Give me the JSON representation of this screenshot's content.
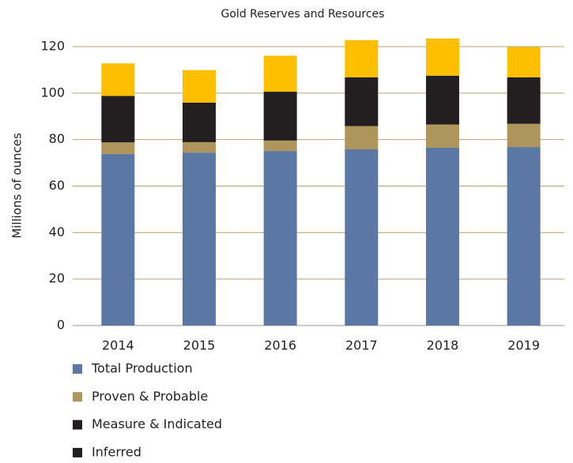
{
  "chart_data": {
    "type": "stacked_bar",
    "title": "Gold Reserves and Resources",
    "y_label": "Millions of ounces",
    "categories": [
      "2014",
      "2015",
      "2016",
      "2017",
      "2018",
      "2019"
    ],
    "series": [
      {
        "name": "Total Production",
        "color": "#5b77a3",
        "values": [
          73.8,
          74.4,
          75.1,
          75.8,
          76.5,
          76.8
        ]
      },
      {
        "name": "Proven & Probable",
        "color": "#ad955b",
        "values": [
          5,
          4.5,
          4.5,
          10,
          10,
          10
        ]
      },
      {
        "name": "Measure & Indicated",
        "color": "#231f20",
        "values": [
          20,
          17,
          21,
          21,
          21,
          20
        ]
      },
      {
        "name": "Inferred",
        "color": "#fdbf00",
        "legend_color": "#231f20",
        "values": [
          14,
          14,
          15.5,
          16,
          16,
          13
        ]
      }
    ],
    "ylim": [
      0,
      120
    ],
    "yticks": [
      0,
      20,
      40,
      60,
      80,
      100,
      120
    ],
    "grid": true,
    "legend": "bottom-left"
  }
}
